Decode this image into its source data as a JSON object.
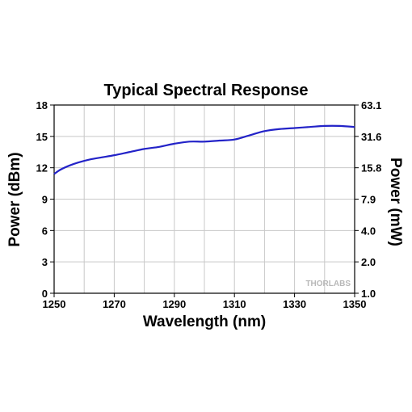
{
  "chart_data": {
    "type": "line",
    "title": "Typical Spectral Response",
    "xlabel": "Wavelength (nm)",
    "ylabel": "Power (dBm)",
    "ylabel_right": "Power (mW)",
    "xlim": [
      1250,
      1350
    ],
    "ylim": [
      0,
      18
    ],
    "x_ticks": [
      "1250",
      "1270",
      "1290",
      "1310",
      "1330",
      "1350"
    ],
    "y_ticks": [
      "0",
      "3",
      "6",
      "9",
      "12",
      "15",
      "18"
    ],
    "y_ticks_right": [
      "1.0",
      "2.0",
      "4.0",
      "7.9",
      "15.8",
      "31.6",
      "63.1"
    ],
    "grid": true,
    "line_color": "#2323c8",
    "watermark": "THORLABS",
    "series": [
      {
        "x": [
          1250,
          1252,
          1255,
          1258,
          1262,
          1266,
          1270,
          1275,
          1280,
          1285,
          1290,
          1295,
          1300,
          1305,
          1310,
          1315,
          1320,
          1325,
          1330,
          1335,
          1340,
          1345,
          1350
        ],
        "values": [
          11.4,
          11.8,
          12.2,
          12.5,
          12.8,
          13.0,
          13.2,
          13.5,
          13.8,
          14.0,
          14.3,
          14.5,
          14.5,
          14.6,
          14.7,
          15.1,
          15.5,
          15.7,
          15.8,
          15.9,
          16.0,
          16.0,
          15.9
        ]
      }
    ]
  }
}
